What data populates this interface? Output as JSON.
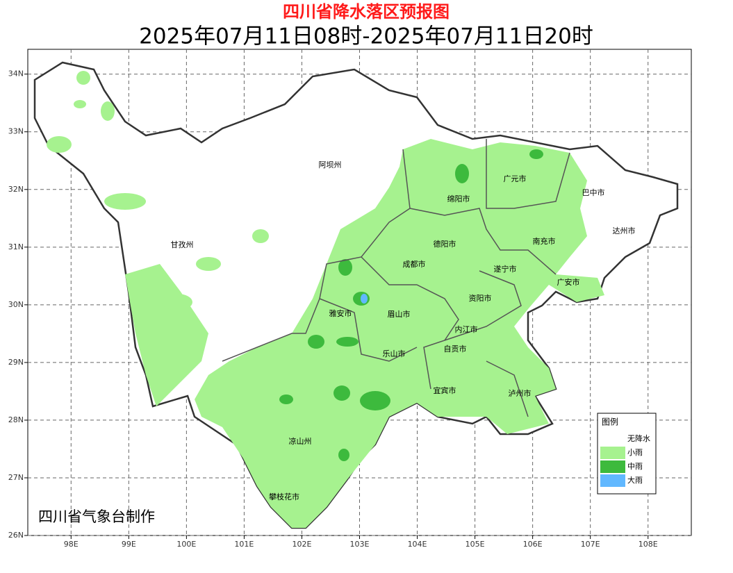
{
  "map": {
    "title": "四川省降水落区预报图",
    "subtitle": "2025年07月11日08时-2025年07月11日20时",
    "xlim": [
      97.25,
      108.75
    ],
    "ylim": [
      26,
      34.43
    ],
    "xticks": [
      {
        "value": 98,
        "label": "98E"
      },
      {
        "value": 99,
        "label": "99E"
      },
      {
        "value": 100,
        "label": "100E"
      },
      {
        "value": 101,
        "label": "101E"
      },
      {
        "value": 102,
        "label": "102E"
      },
      {
        "value": 103,
        "label": "103E"
      },
      {
        "value": 104,
        "label": "104E"
      },
      {
        "value": 105,
        "label": "105E"
      },
      {
        "value": 106,
        "label": "106E"
      },
      {
        "value": 107,
        "label": "107E"
      },
      {
        "value": 108,
        "label": "108E"
      }
    ],
    "yticks": [
      {
        "value": 26,
        "label": "26N"
      },
      {
        "value": 27,
        "label": "27N"
      },
      {
        "value": 28,
        "label": "28N"
      },
      {
        "value": 29,
        "label": "29N"
      },
      {
        "value": 30,
        "label": "30N"
      },
      {
        "value": 31,
        "label": "31N"
      },
      {
        "value": 32,
        "label": "32N"
      },
      {
        "value": 33,
        "label": "33N"
      },
      {
        "value": 34,
        "label": "34N"
      }
    ],
    "grid": true,
    "cities": [
      "阿坝州",
      "甘孜州",
      "绵阳市",
      "广元市",
      "巴中市",
      "达州市",
      "德阳市",
      "南充市",
      "成都市",
      "遂宁市",
      "广安市",
      "资阳市",
      "雅安市",
      "眉山市",
      "内江市",
      "自贡市",
      "乐山市",
      "宜宾市",
      "泸州市",
      "凉山州",
      "攀枝花市"
    ],
    "legend": {
      "title": "图例",
      "items": [
        {
          "label": "无降水",
          "color": "#ffffff"
        },
        {
          "label": "小雨",
          "color": "#a6f28f"
        },
        {
          "label": "中雨",
          "color": "#3dba3d"
        },
        {
          "label": "大雨",
          "color": "#61b8ff"
        }
      ]
    },
    "credit": "四川省气象台制作"
  }
}
